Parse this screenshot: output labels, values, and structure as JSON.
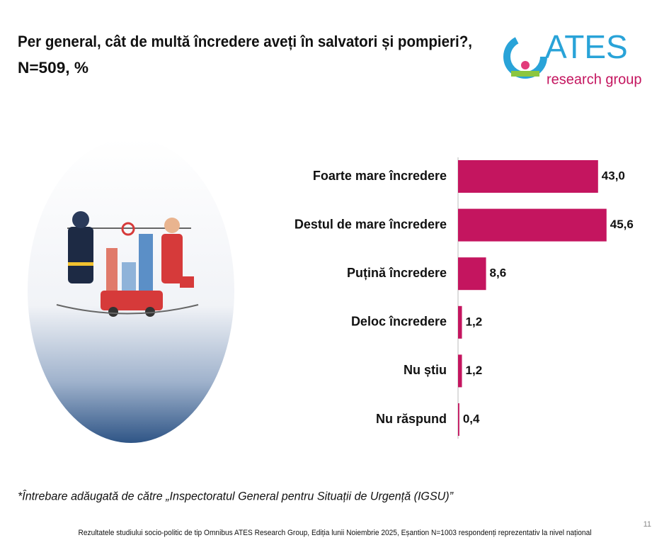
{
  "chart_data": {
    "type": "bar",
    "orientation": "horizontal",
    "title": [
      "Per general, cât de multă încredere aveți în salvatori și pompieri?,",
      "N=509, %"
    ],
    "categories": [
      "Foarte mare încredere",
      "Destul de mare încredere",
      "Puțină încredere",
      "Deloc încredere",
      "Nu știu",
      "Nu răspund"
    ],
    "values": [
      43.0,
      45.6,
      8.6,
      1.2,
      1.2,
      0.4
    ],
    "value_labels": [
      "43,0",
      "45,6",
      "8,6",
      "1,2",
      "1,2",
      "0,4"
    ],
    "color": "#c4155f",
    "xlim": [
      0,
      50
    ]
  },
  "logo": {
    "name": "ATES",
    "subtitle": "research group"
  },
  "footnote": "*Întrebare adăugată de către „Inspectoratul General pentru Situații de Urgență (IGSU)”",
  "source": "Rezultatele studiului socio-politic de tip Omnibus ATES Research Group, Ediția lunii Noiembrie 2025, Eșantion N=1003 respondenți reprezentativ la nivel național",
  "page_number": "11"
}
